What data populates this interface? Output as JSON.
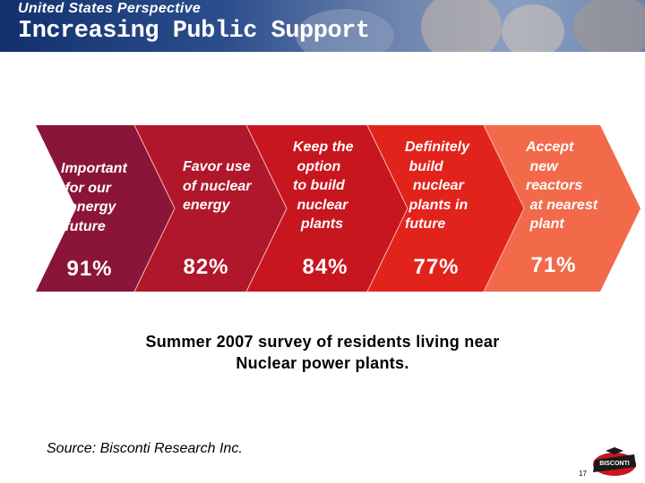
{
  "header": {
    "subtitle": "United States Perspective",
    "title": "Increasing Public Support"
  },
  "chevrons": [
    {
      "label": "Important\n for our\n  energy\n future",
      "value": "91%",
      "color": "#8b1538"
    },
    {
      "label": "Favor use\nof nuclear\nenergy",
      "value": "82%",
      "color": "#b0172b"
    },
    {
      "label": "Keep the\n option\nto build\n nuclear\n  plants",
      "value": "84%",
      "color": "#c8161f"
    },
    {
      "label": "Definitely\n build\n  nuclear\n plants in\nfuture",
      "value": "77%",
      "color": "#e2231c"
    },
    {
      "label": "Accept\n new\nreactors\n at nearest\n plant",
      "value": "71%",
      "color": "#f26a4a"
    }
  ],
  "survey_note": "Summer 2007 survey of residents living near\nNuclear power plants.",
  "source": "Source:  Bisconti Research Inc.",
  "footer": {
    "logo_text": "BISCONTI",
    "page_number": "17"
  }
}
